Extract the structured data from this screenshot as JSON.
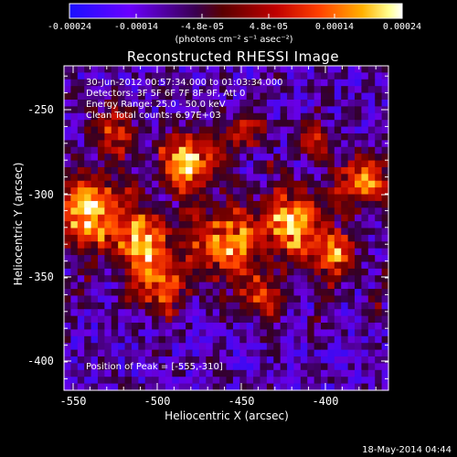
{
  "colorbar": {
    "ticks": [
      "-0.00024",
      "-0.00014",
      "-4.8e-05",
      "4.8e-05",
      "0.00014",
      "0.00024"
    ],
    "units": "(photons cm⁻² s⁻¹ asec⁻²)",
    "colormap": [
      "#1a10ff",
      "#6a00ff",
      "#3a0050",
      "#6a0000",
      "#c00000",
      "#ff4000",
      "#ffb000",
      "#ffffa0",
      "#ffffff"
    ]
  },
  "plot": {
    "title": "Reconstructed RHESSI Image",
    "xaxis_title": "Heliocentric X (arcsec)",
    "yaxis_title": "Heliocentric Y (arcsec)",
    "xlim": [
      -555,
      -365
    ],
    "ylim": [
      -418,
      -224
    ],
    "xticks": [
      "-550",
      "-500",
      "-450",
      "-400"
    ],
    "yticks": [
      "-250",
      "-300",
      "-350",
      "-400"
    ]
  },
  "annotations": {
    "time_range": "30-Jun-2012 00:57:34.000 to 01:03:34.000",
    "detectors": "Detectors: 3F 5F 6F 7F 8F 9F, Att 0",
    "energy_range": "Energy Range: 25.0 - 50.0 keV",
    "clean": "Clean     Total counts: 6.97E+03",
    "peak": "Position of Peak = [-555,-310]"
  },
  "footer": {
    "date": "18-May-2014 04:44"
  }
}
